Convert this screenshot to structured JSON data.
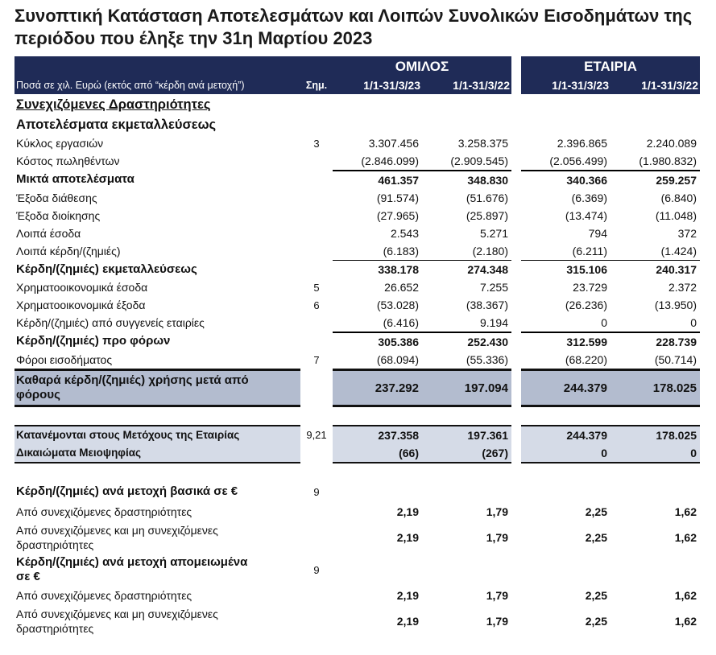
{
  "title": "Συνοπτική Κατάσταση Αποτελεσμάτων και Λοιπών Συνολικών Εισοδημάτων της περιόδου που έληξε την 31η Μαρτίου 2023",
  "header": {
    "group_label": "ΟΜΙΛΟΣ",
    "company_label": "ΕΤΑΙΡΙΑ",
    "amounts_note": "Ποσά σε χιλ. Ευρώ (εκτός από “κέρδη ανά μετοχή”)",
    "note_label": "Σημ.",
    "periods": [
      "1/1-31/3/23",
      "1/1-31/3/22",
      "1/1-31/3/23",
      "1/1-31/3/22"
    ]
  },
  "colors": {
    "header_bg": "#1f2b57",
    "shaded": "#b3bccf",
    "alloc": "#d5dbe7"
  },
  "rows": [
    {
      "style": "section",
      "label": "Συνεχιζόμενες Δραστηριότητες",
      "note": "",
      "values": [
        "",
        "",
        "",
        ""
      ]
    },
    {
      "style": "heading",
      "label": "Αποτελέσματα εκμεταλλεύσεως",
      "note": "",
      "values": [
        "",
        "",
        "",
        ""
      ]
    },
    {
      "style": "",
      "label": "Κύκλος εργασιών",
      "note": "3",
      "values": [
        "3.307.456",
        "3.258.375",
        "2.396.865",
        "2.240.089"
      ]
    },
    {
      "style": "",
      "label": "Κόστος πωληθέντων",
      "note": "",
      "values": [
        "(2.846.099)",
        "(2.909.545)",
        "(2.056.499)",
        "(1.980.832)"
      ]
    },
    {
      "style": "bold bt2",
      "label": "Μικτά αποτελέσματα",
      "note": "",
      "values": [
        "461.357",
        "348.830",
        "340.366",
        "259.257"
      ]
    },
    {
      "style": "",
      "label": "Έξοδα διάθεσης",
      "note": "",
      "values": [
        "(91.574)",
        "(51.676)",
        "(6.369)",
        "(6.840)"
      ]
    },
    {
      "style": "",
      "label": "Έξοδα διοίκησης",
      "note": "",
      "values": [
        "(27.965)",
        "(25.897)",
        "(13.474)",
        "(11.048)"
      ]
    },
    {
      "style": "",
      "label": "Λοιπά έσοδα",
      "note": "",
      "values": [
        "2.543",
        "5.271",
        "794",
        "372"
      ]
    },
    {
      "style": "",
      "label": "Λοιπά κέρδη/(ζημιές)",
      "note": "",
      "values": [
        "(6.183)",
        "(2.180)",
        "(6.211)",
        "(1.424)"
      ]
    },
    {
      "style": "bold bt1",
      "label": "Κέρδη/(ζημιές) εκμεταλλεύσεως",
      "note": "",
      "values": [
        "338.178",
        "274.348",
        "315.106",
        "240.317"
      ]
    },
    {
      "style": "",
      "label": "Χρηματοοικονομικά έσοδα",
      "note": "5",
      "values": [
        "26.652",
        "7.255",
        "23.729",
        "2.372"
      ]
    },
    {
      "style": "",
      "label": "Χρηματοοικονομικά έξοδα",
      "note": "6",
      "values": [
        "(53.028)",
        "(38.367)",
        "(26.236)",
        "(13.950)"
      ]
    },
    {
      "style": "",
      "label": "Κέρδη/(ζημιές) από συγγενείς εταιρίες",
      "note": "",
      "values": [
        "(6.416)",
        "9.194",
        "0",
        "0"
      ]
    },
    {
      "style": "bold bt2",
      "label": "Κέρδη/(ζημιές) προ φόρων",
      "note": "",
      "values": [
        "305.386",
        "252.430",
        "312.599",
        "228.739"
      ]
    },
    {
      "style": "",
      "label": "Φόροι εισοδήματος",
      "note": "7",
      "values": [
        "(68.094)",
        "(55.336)",
        "(68.220)",
        "(50.714)"
      ]
    },
    {
      "style": "shaded",
      "label": "Καθαρά κέρδη/(ζημιές) χρήσης μετά από φόρους",
      "note": "",
      "values": [
        "237.292",
        "197.094",
        "244.379",
        "178.025"
      ]
    },
    {
      "style": "spacer",
      "label": "",
      "note": "",
      "values": [
        "",
        "",
        "",
        ""
      ]
    },
    {
      "style": "alloc alloc-top",
      "label": "Κατανέμονται στους Μετόχους της Εταιρίας",
      "note": "9,21",
      "values": [
        "237.358",
        "197.361",
        "244.379",
        "178.025"
      ]
    },
    {
      "style": "alloc alloc-bot",
      "label": "Δικαιώματα Μειοψηφίας",
      "note": "",
      "values": [
        "(66)",
        "(267)",
        "0",
        "0"
      ]
    },
    {
      "style": "spacer",
      "label": "",
      "note": "",
      "values": [
        "",
        "",
        "",
        ""
      ]
    },
    {
      "style": "eps-head",
      "label": "Κέρδη/(ζημιές) ανά μετοχή βασικά σε €",
      "note": "9",
      "values": [
        "",
        "",
        "",
        ""
      ]
    },
    {
      "style": "eps",
      "label": "Από συνεχιζόμενες δραστηριότητες",
      "note": "",
      "values": [
        "2,19",
        "1,79",
        "2,25",
        "1,62"
      ]
    },
    {
      "style": "eps two",
      "label": "Από συνεχιζόμενες και μη συνεχιζόμενες δραστηριότητες",
      "note": "",
      "values": [
        "2,19",
        "1,79",
        "2,25",
        "1,62"
      ]
    },
    {
      "style": "eps-head two",
      "label": "Κέρδη/(ζημιές) ανά μετοχή απομειωμένα σε €",
      "note": "9",
      "values": [
        "",
        "",
        "",
        ""
      ]
    },
    {
      "style": "eps",
      "label": "Από συνεχιζόμενες δραστηριότητες",
      "note": "",
      "values": [
        "2,19",
        "1,79",
        "2,25",
        "1,62"
      ]
    },
    {
      "style": "eps two",
      "label": "Από συνεχιζόμενες και μη συνεχιζόμενες δραστηριότητες",
      "note": "",
      "values": [
        "2,19",
        "1,79",
        "2,25",
        "1,62"
      ]
    }
  ]
}
